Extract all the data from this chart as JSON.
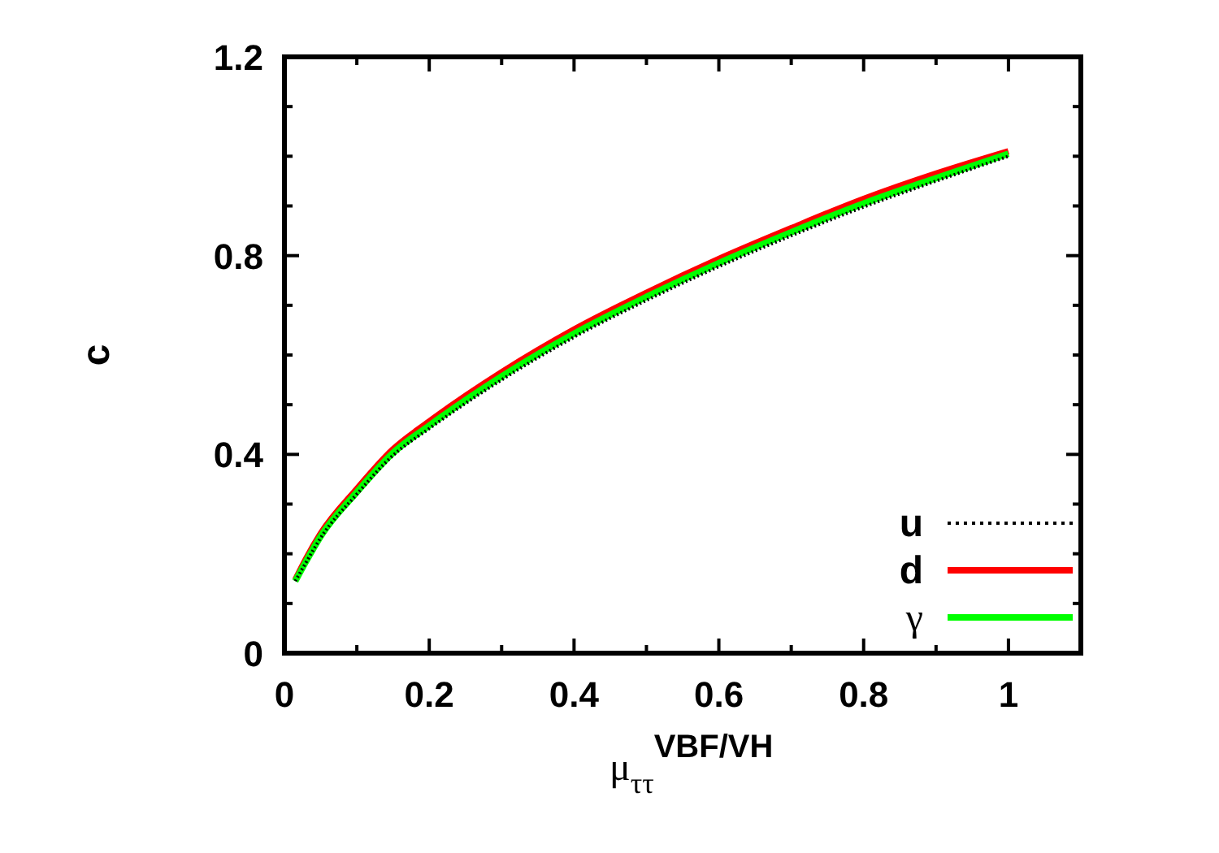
{
  "chart_data": {
    "type": "line",
    "xlabel": "μ$_{ττ}$$^{VBF/VH}$",
    "ylabel": "c",
    "xlim": [
      0,
      1.1
    ],
    "ylim": [
      0,
      1.2
    ],
    "xticks": [
      0,
      {
        "value": 0.1,
        "label": null
      },
      0.2,
      {
        "value": 0.3,
        "label": null
      },
      0.4,
      {
        "value": 0.5,
        "label": null
      },
      0.6,
      {
        "value": 0.7,
        "label": null
      },
      0.8,
      {
        "value": 0.9,
        "label": null
      },
      1,
      {
        "value": 1.1,
        "label": null
      }
    ],
    "yticks": [
      0,
      {
        "value": 0.1,
        "label": null
      },
      {
        "value": 0.2,
        "label": null
      },
      {
        "value": 0.3,
        "label": null
      },
      0.4,
      {
        "value": 0.5,
        "label": null
      },
      {
        "value": 0.6,
        "label": null
      },
      {
        "value": 0.7,
        "label": null
      },
      0.8,
      {
        "value": 0.9,
        "label": null
      },
      {
        "value": 1.0,
        "label": null
      },
      {
        "value": 1.1,
        "label": null
      },
      1.2
    ],
    "x": [
      0.015,
      0.03,
      0.05,
      0.1,
      0.15,
      0.2,
      0.3,
      0.4,
      0.5,
      0.6,
      0.7,
      0.8,
      0.9,
      1.0
    ],
    "grid": false,
    "legend": "bottom right",
    "series": [
      {
        "name": "u",
        "color": "#000000",
        "line_style": "dotted",
        "values": [
          0.145,
          0.183,
          0.232,
          0.32,
          0.398,
          0.452,
          0.55,
          0.636,
          0.71,
          0.778,
          0.84,
          0.898,
          0.95,
          1.0
        ]
      },
      {
        "name": "d",
        "color": "#ff0000",
        "line_style": "solid",
        "values": [
          0.147,
          0.19,
          0.24,
          0.33,
          0.41,
          0.466,
          0.565,
          0.651,
          0.725,
          0.793,
          0.855,
          0.914,
          0.965,
          1.01
        ]
      },
      {
        "name": "γ",
        "color": "#00ff00",
        "line_style": "solid",
        "values": [
          0.145,
          0.185,
          0.235,
          0.324,
          0.403,
          0.458,
          0.557,
          0.643,
          0.717,
          0.785,
          0.847,
          0.905,
          0.956,
          1.005
        ]
      }
    ]
  }
}
